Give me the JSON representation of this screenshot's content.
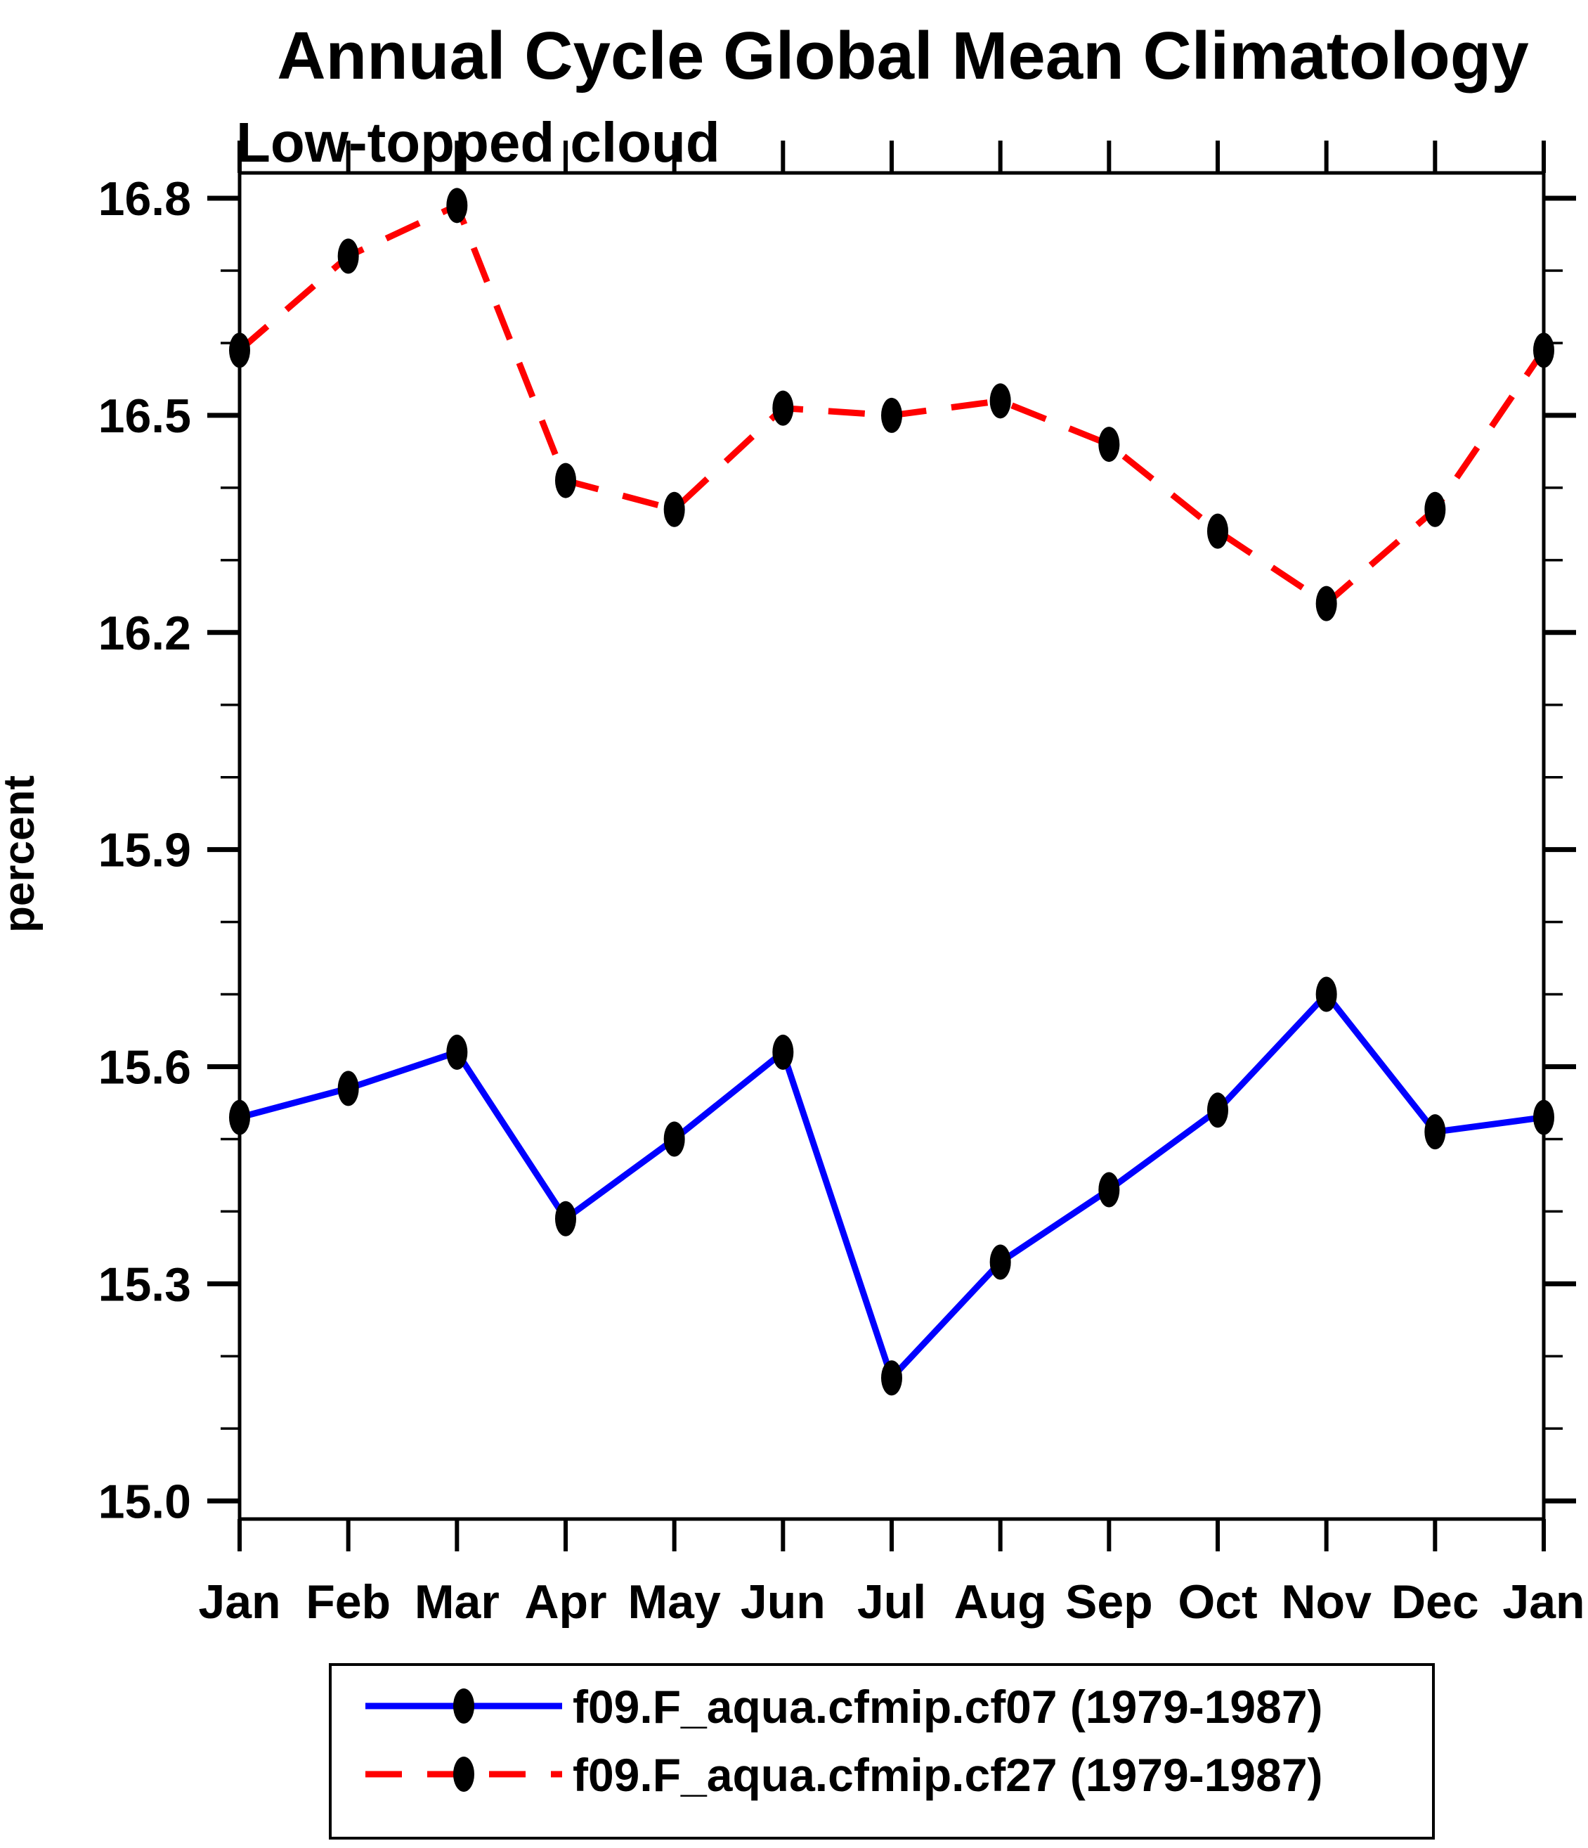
{
  "page": {
    "background": "#ffffff",
    "text_color": "#000000"
  },
  "chart_data": {
    "type": "line",
    "title": "Annual Cycle Global Mean Climatology",
    "subtitle": "Low-topped cloud",
    "xlabel": "",
    "ylabel": "percent",
    "x_categories": [
      "Jan",
      "Feb",
      "Mar",
      "Apr",
      "May",
      "Jun",
      "Jul",
      "Aug",
      "Sep",
      "Oct",
      "Nov",
      "Dec",
      "Jan"
    ],
    "ylim": [
      14.975,
      16.835
    ],
    "y_major_ticks": [
      15.0,
      15.3,
      15.6,
      15.9,
      16.2,
      16.5,
      16.8
    ],
    "y_major_tick_labels": [
      "15.0",
      "15.3",
      "15.6",
      "15.9",
      "16.2",
      "16.5",
      "16.8"
    ],
    "y_minor_step": 0.1,
    "grid": false,
    "frame_color": "#000000",
    "marker": {
      "shape": "ellipse",
      "color": "#000000",
      "rx": 15,
      "ry": 25
    },
    "series": [
      {
        "name": "f09.F_aqua.cfmip.cf07 (1979-1987)",
        "color": "#0000ff",
        "line_style": "solid",
        "values": [
          15.53,
          15.57,
          15.62,
          15.39,
          15.5,
          15.62,
          15.17,
          15.33,
          15.43,
          15.54,
          15.7,
          15.51,
          15.53
        ]
      },
      {
        "name": "f09.F_aqua.cfmip.cf27 (1979-1987)",
        "color": "#ff0000",
        "line_style": "dashed",
        "values": [
          16.59,
          16.72,
          16.79,
          16.41,
          16.37,
          16.51,
          16.5,
          16.52,
          16.46,
          16.34,
          16.24,
          16.37,
          16.59
        ]
      }
    ],
    "legend_position": "bottom"
  }
}
